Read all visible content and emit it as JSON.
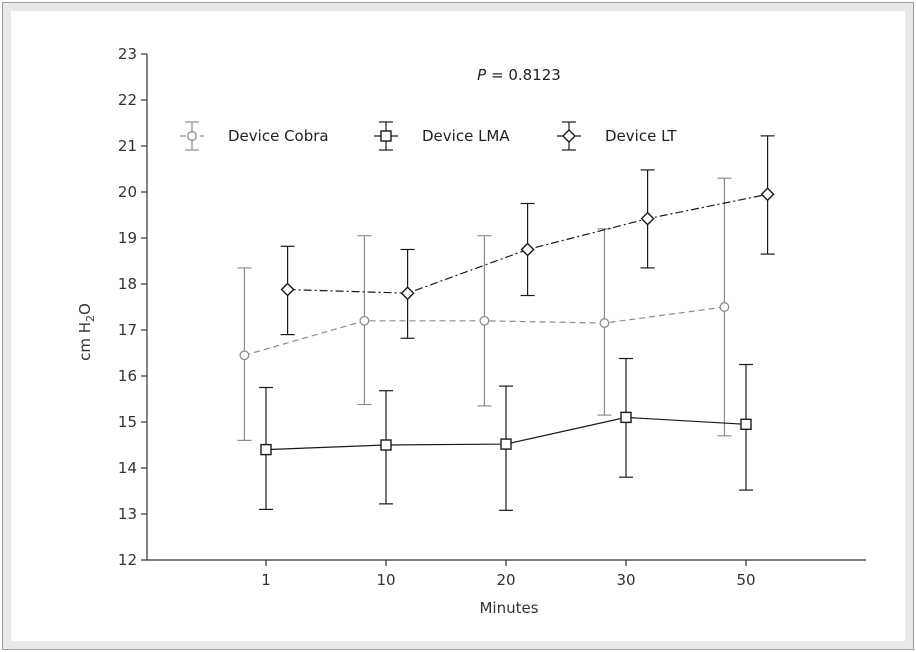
{
  "chart_data": {
    "type": "line",
    "title": "",
    "annotation": {
      "prefix": "P",
      "text": " = 0.8123"
    },
    "xlabel": "Minutes",
    "ylabel": {
      "main": "cm H",
      "sub": "2",
      "tail": "O"
    },
    "categories": [
      "1",
      "10",
      "20",
      "30",
      "50"
    ],
    "ylim": [
      12,
      23
    ],
    "yticks": [
      12,
      13,
      14,
      15,
      16,
      17,
      18,
      19,
      20,
      21,
      22,
      23
    ],
    "grid": false,
    "legend_position": "top-left",
    "series": [
      {
        "name": "Device Cobra",
        "marker": "circle",
        "line_style": "dashed",
        "color": "#8c8c8c",
        "offset": -0.18,
        "values": [
          16.45,
          17.2,
          17.2,
          17.15,
          17.5
        ],
        "err_low": [
          14.6,
          15.38,
          15.35,
          15.15,
          14.7
        ],
        "err_high": [
          18.35,
          19.05,
          19.05,
          19.2,
          20.3
        ]
      },
      {
        "name": "Device LMA",
        "marker": "square",
        "line_style": "solid",
        "color": "#1a1a1a",
        "offset": 0.0,
        "values": [
          14.4,
          14.5,
          14.52,
          15.1,
          14.95
        ],
        "err_low": [
          13.1,
          13.22,
          13.08,
          13.8,
          13.52
        ],
        "err_high": [
          15.75,
          15.68,
          15.78,
          16.38,
          16.25
        ]
      },
      {
        "name": "Device LT",
        "marker": "diamond",
        "line_style": "dashdot",
        "color": "#1a1a1a",
        "offset": 0.18,
        "values": [
          17.88,
          17.8,
          18.75,
          19.42,
          19.95
        ],
        "err_low": [
          16.9,
          16.82,
          17.75,
          18.35,
          18.65
        ],
        "err_high": [
          18.82,
          18.75,
          19.75,
          20.48,
          21.22
        ]
      }
    ]
  }
}
